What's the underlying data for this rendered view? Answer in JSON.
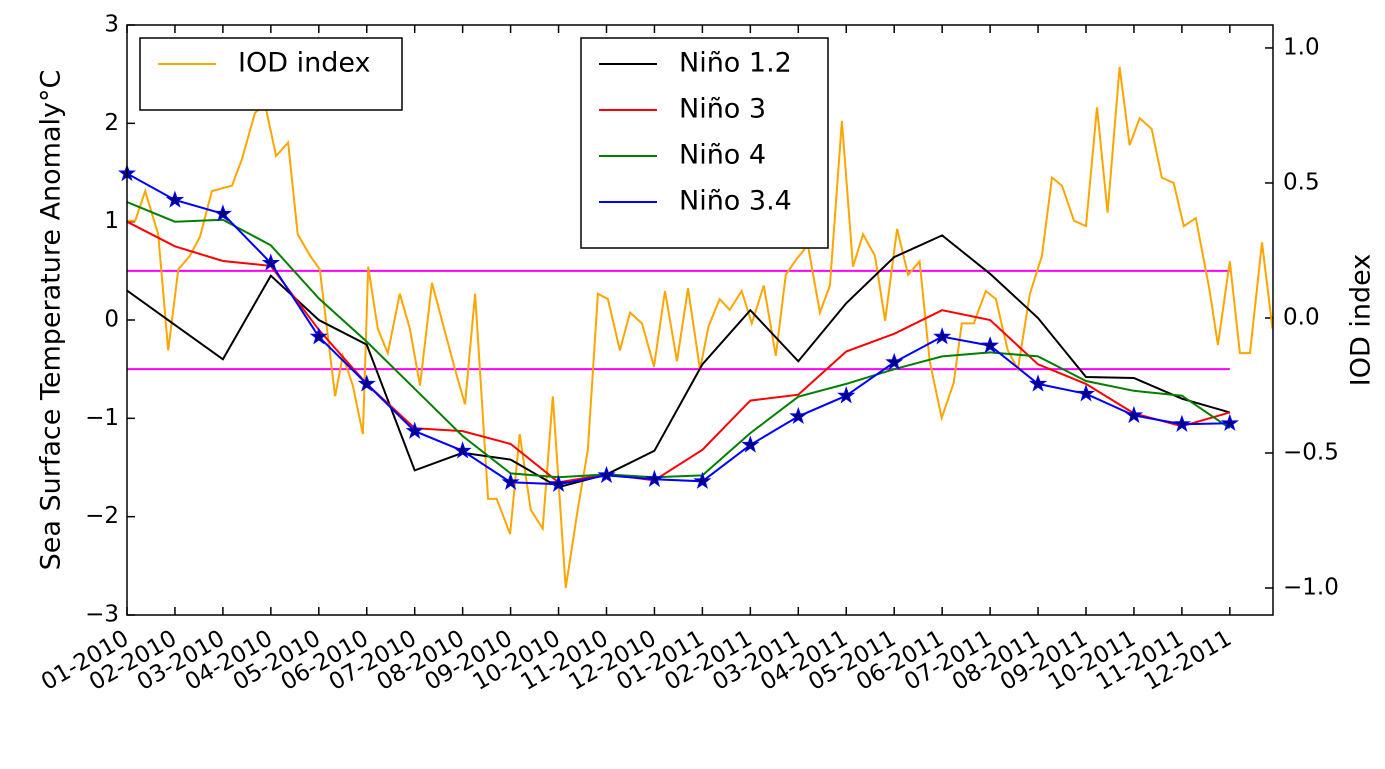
{
  "chart_data": {
    "type": "line",
    "ylabel": "Sea Surface Temperature Anomaly°C",
    "y2label": "IOD index",
    "xlim": [
      0,
      23.9
    ],
    "xticks": [
      {
        "value": 0,
        "label": "01-2010"
      },
      {
        "value": 1,
        "label": "02-2010"
      },
      {
        "value": 2,
        "label": "03-2010"
      },
      {
        "value": 3,
        "label": "04-2010"
      },
      {
        "value": 4,
        "label": "05-2010"
      },
      {
        "value": 5,
        "label": "06-2010"
      },
      {
        "value": 6,
        "label": "07-2010"
      },
      {
        "value": 7,
        "label": "08-2010"
      },
      {
        "value": 8,
        "label": "09-2010"
      },
      {
        "value": 9,
        "label": "10-2010"
      },
      {
        "value": 10,
        "label": "11-2010"
      },
      {
        "value": 11,
        "label": "12-2010"
      },
      {
        "value": 12,
        "label": "01-2011"
      },
      {
        "value": 13,
        "label": "02-2011"
      },
      {
        "value": 14,
        "label": "03-2011"
      },
      {
        "value": 15,
        "label": "04-2011"
      },
      {
        "value": 16,
        "label": "05-2011"
      },
      {
        "value": 17,
        "label": "06-2011"
      },
      {
        "value": 18,
        "label": "07-2011"
      },
      {
        "value": 19,
        "label": "08-2011"
      },
      {
        "value": 20,
        "label": "09-2011"
      },
      {
        "value": 21,
        "label": "10-2011"
      },
      {
        "value": 22,
        "label": "11-2011"
      },
      {
        "value": 23,
        "label": "12-2011"
      }
    ],
    "ylim": [
      -3,
      3
    ],
    "yticks": [
      {
        "value": -3,
        "label": "−3"
      },
      {
        "value": -2,
        "label": "−2"
      },
      {
        "value": -1,
        "label": "−1"
      },
      0,
      1,
      2,
      3
    ],
    "y2lim": [
      -1.1,
      1.085
    ],
    "y2ticks": [
      {
        "value": -1,
        "label": "−1.0"
      },
      {
        "value": -0.5,
        "label": "−0.5"
      },
      {
        "value": 0,
        "label": "0.0"
      },
      {
        "value": 0.5,
        "label": "0.5"
      },
      {
        "value": 1,
        "label": "1.0"
      }
    ],
    "hlines": {
      "values": [
        0.5,
        -0.5
      ],
      "color": "#ff00ff"
    },
    "x": [
      0,
      1,
      2,
      3,
      4,
      5,
      6,
      7,
      8,
      9,
      10,
      11,
      12,
      13,
      14,
      15,
      16,
      17,
      18,
      19,
      20,
      21,
      22,
      23
    ],
    "series": [
      {
        "name": "IOD index",
        "color": "#ffa500",
        "axis": "y2",
        "x": [
          0,
          0.17,
          0.38,
          0.65,
          0.86,
          1.07,
          1.31,
          1.52,
          1.77,
          1.98,
          2.19,
          2.4,
          2.67,
          2.88,
          3.11,
          3.36,
          3.56,
          3.82,
          4.02,
          4.34,
          4.5,
          4.71,
          4.92,
          5.03,
          5.23,
          5.44,
          5.69,
          5.9,
          6.11,
          6.36,
          6.57,
          6.84,
          7.05,
          7.26,
          7.53,
          7.71,
          7.99,
          8.19,
          8.42,
          8.67,
          8.88,
          9.15,
          9.4,
          9.61,
          9.82,
          10.03,
          10.28,
          10.49,
          10.74,
          10.99,
          11.22,
          11.47,
          11.7,
          11.95,
          12.13,
          12.36,
          12.57,
          12.82,
          13.03,
          13.28,
          13.53,
          13.74,
          13.97,
          14.2,
          14.45,
          14.66,
          14.91,
          15.14,
          15.35,
          15.6,
          15.81,
          16.06,
          16.29,
          16.53,
          16.74,
          16.99,
          17.24,
          17.41,
          17.66,
          17.91,
          18.12,
          18.37,
          18.58,
          18.83,
          19.08,
          19.29,
          19.5,
          19.75,
          20.0,
          20.23,
          20.45,
          20.7,
          20.91,
          21.12,
          21.37,
          21.58,
          21.83,
          22.04,
          22.29,
          22.58,
          22.75,
          23.0,
          23.21,
          23.42,
          23.67,
          23.89
        ],
        "values": [
          0.36,
          0.36,
          0.47,
          0.31,
          -0.12,
          0.18,
          0.23,
          0.3,
          0.47,
          0.48,
          0.49,
          0.59,
          0.76,
          0.79,
          0.6,
          0.65,
          0.31,
          0.23,
          0.18,
          -0.29,
          -0.14,
          -0.25,
          -0.43,
          0.19,
          -0.04,
          -0.13,
          0.09,
          -0.04,
          -0.25,
          0.13,
          -0.01,
          -0.19,
          -0.32,
          0.09,
          -0.67,
          -0.67,
          -0.8,
          -0.43,
          -0.71,
          -0.78,
          -0.29,
          -1.0,
          -0.71,
          -0.49,
          0.09,
          0.07,
          -0.12,
          0.02,
          -0.02,
          -0.18,
          0.1,
          -0.16,
          0.11,
          -0.19,
          -0.03,
          0.07,
          0.03,
          0.1,
          -0.02,
          0.12,
          -0.14,
          0.16,
          0.22,
          0.27,
          0.02,
          0.12,
          0.73,
          0.19,
          0.31,
          0.23,
          -0.01,
          0.33,
          0.16,
          0.21,
          -0.16,
          -0.37,
          -0.24,
          -0.02,
          -0.02,
          0.1,
          0.07,
          -0.12,
          -0.19,
          0.09,
          0.23,
          0.52,
          0.49,
          0.36,
          0.34,
          0.78,
          0.39,
          0.93,
          0.64,
          0.74,
          0.7,
          0.52,
          0.5,
          0.34,
          0.37,
          0.1,
          -0.1,
          0.21,
          -0.13,
          -0.13,
          0.28,
          -0.04
        ]
      },
      {
        "name": "Niño 1.2",
        "color": "#000000",
        "values": [
          0.3,
          -0.05,
          -0.4,
          0.45,
          0.0,
          -0.25,
          -1.53,
          -1.35,
          -1.42,
          -1.7,
          -1.57,
          -1.33,
          -0.45,
          0.1,
          -0.42,
          0.17,
          0.64,
          0.86,
          0.47,
          0.02,
          -0.58,
          -0.59,
          -0.8,
          -0.94
        ]
      },
      {
        "name": "Niño 3",
        "color": "#ff0000",
        "values": [
          1.0,
          0.75,
          0.6,
          0.55,
          -0.1,
          -0.65,
          -1.1,
          -1.13,
          -1.26,
          -1.65,
          -1.57,
          -1.63,
          -1.32,
          -0.82,
          -0.76,
          -0.32,
          -0.14,
          0.1,
          0.0,
          -0.45,
          -0.65,
          -0.95,
          -1.08,
          -0.94
        ]
      },
      {
        "name": "Niño 4",
        "color": "#008000",
        "values": [
          1.2,
          1.0,
          1.02,
          0.76,
          0.22,
          -0.22,
          -0.7,
          -1.18,
          -1.56,
          -1.6,
          -1.57,
          -1.6,
          -1.58,
          -1.15,
          -0.78,
          -0.65,
          -0.5,
          -0.37,
          -0.33,
          -0.37,
          -0.62,
          -0.72,
          -0.77,
          -1.1
        ]
      },
      {
        "name": "Niño 3.4",
        "color": "#0000ff",
        "marker": "star",
        "marker_color": "#000080",
        "values": [
          1.49,
          1.22,
          1.08,
          0.58,
          -0.17,
          -0.65,
          -1.13,
          -1.33,
          -1.65,
          -1.67,
          -1.58,
          -1.62,
          -1.64,
          -1.27,
          -0.98,
          -0.77,
          -0.43,
          -0.17,
          -0.26,
          -0.65,
          -0.75,
          -0.97,
          -1.06,
          -1.05
        ]
      }
    ]
  }
}
